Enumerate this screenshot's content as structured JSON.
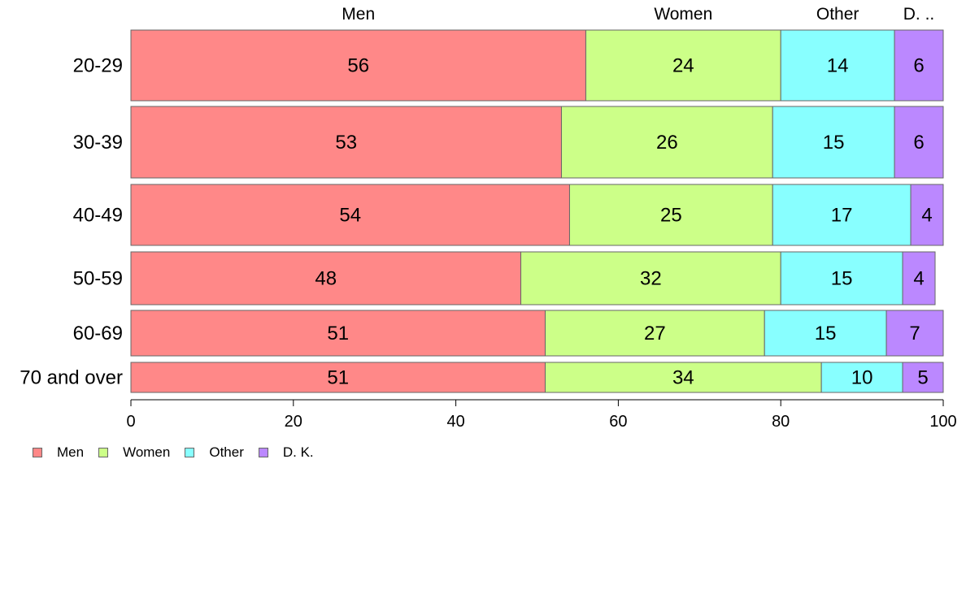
{
  "chart_data": {
    "type": "bar",
    "orientation": "horizontal",
    "stacked": true,
    "categories": [
      "20-29",
      "30-39",
      "40-49",
      "50-59",
      "60-69",
      "70 and over"
    ],
    "series": [
      {
        "name": "Men",
        "color": "#ff8888",
        "values": [
          56,
          53,
          54,
          48,
          51,
          51
        ]
      },
      {
        "name": "Women",
        "color": "#ccff88",
        "values": [
          24,
          26,
          25,
          32,
          27,
          34
        ]
      },
      {
        "name": "Other",
        "color": "#88ffff",
        "values": [
          14,
          15,
          17,
          15,
          15,
          10
        ]
      },
      {
        "name": "D. K.",
        "color": "#bb88ff",
        "values": [
          6,
          6,
          4,
          4,
          7,
          5
        ]
      }
    ],
    "segment_top_labels": [
      "Men",
      "Women",
      "Other",
      "D. .."
    ],
    "xlim": [
      0,
      100
    ],
    "xticks": [
      0,
      20,
      40,
      60,
      80,
      100
    ],
    "grid": false,
    "legend": "bottom-left"
  },
  "legend": [
    {
      "label": "Men",
      "color": "#ff8888"
    },
    {
      "label": "Women",
      "color": "#ccff88"
    },
    {
      "label": "Other",
      "color": "#88ffff"
    },
    {
      "label": "D. K.",
      "color": "#bb88ff"
    }
  ]
}
